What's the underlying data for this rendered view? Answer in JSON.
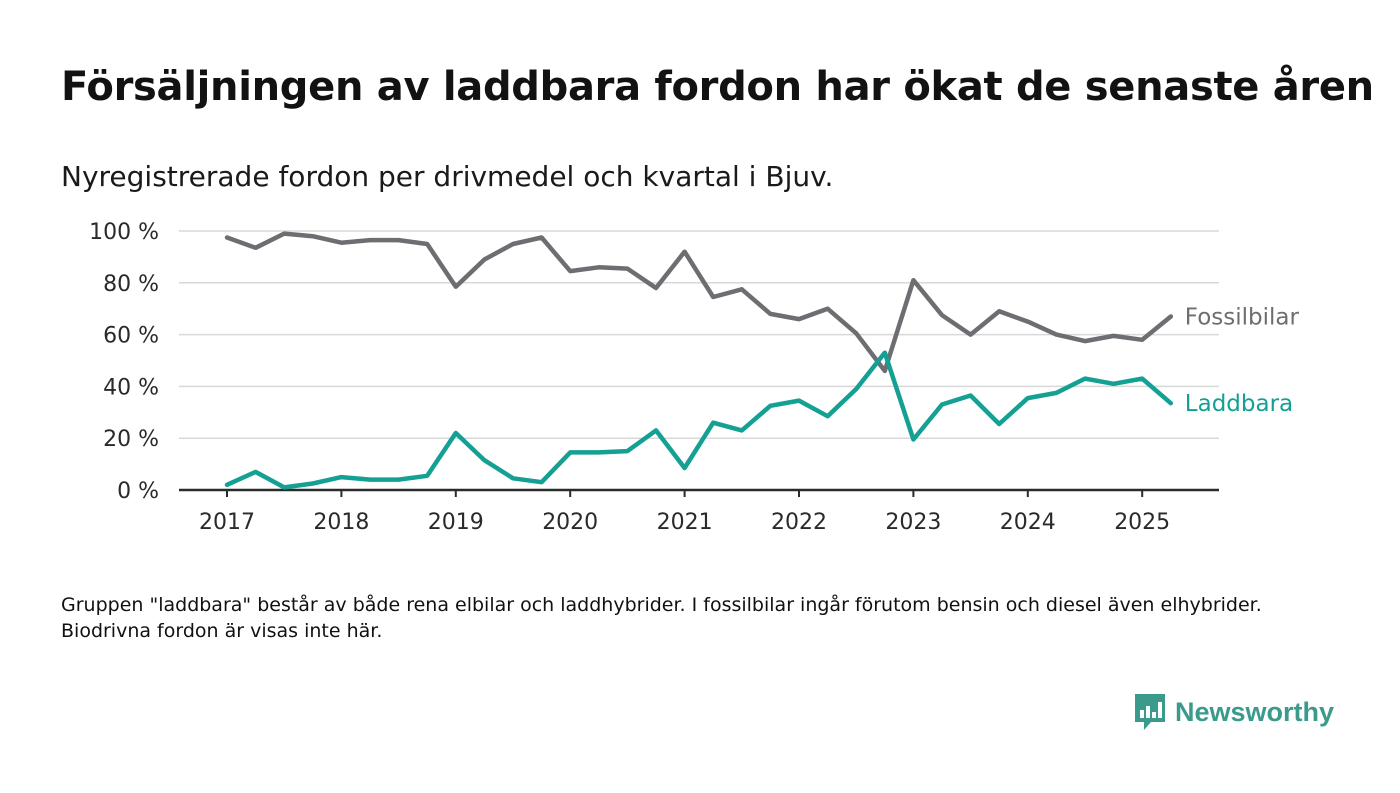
{
  "title": "Försäljningen av laddbara fordon har ökat de senaste åren",
  "subtitle": "Nyregistrerade fordon per drivmedel och kvartal i Bjuv.",
  "note": "Gruppen \"laddbara\" består av både rena elbilar och laddhybrider. I fossilbilar ingår förutom bensin och diesel även elhybrider. Biodrivna fordon är visas inte här.",
  "brand": {
    "name": "Newsworthy",
    "color": "#3a9a8c",
    "icon": "bar-chart-speech-bubble-icon"
  },
  "chart_data": {
    "type": "line",
    "x_tick_labels": [
      "2017",
      "2018",
      "2019",
      "2020",
      "2021",
      "2022",
      "2023",
      "2024",
      "2025"
    ],
    "y_tick_labels": [
      "0 %",
      "20 %",
      "40 %",
      "60 %",
      "80 %",
      "100 %"
    ],
    "ylim": [
      0,
      100
    ],
    "grid": true,
    "legend": "inline labels at line ends (right)",
    "x": [
      "2017 Q1",
      "2017 Q2",
      "2017 Q3",
      "2017 Q4",
      "2018 Q1",
      "2018 Q2",
      "2018 Q3",
      "2018 Q4",
      "2019 Q1",
      "2019 Q2",
      "2019 Q3",
      "2019 Q4",
      "2020 Q1",
      "2020 Q2",
      "2020 Q3",
      "2020 Q4",
      "2021 Q1",
      "2021 Q2",
      "2021 Q3",
      "2021 Q4",
      "2022 Q1",
      "2022 Q2",
      "2022 Q3",
      "2022 Q4",
      "2023 Q1",
      "2023 Q2",
      "2023 Q3",
      "2023 Q4",
      "2024 Q1",
      "2024 Q2",
      "2024 Q3",
      "2024 Q4",
      "2025 Q1",
      "2025 Q2"
    ],
    "series": [
      {
        "name": "Fossilbilar",
        "color": "#6e6d72",
        "values": [
          97.5,
          93.5,
          99,
          98,
          95.5,
          96.5,
          96.5,
          95,
          78.5,
          89,
          95,
          97.5,
          84.5,
          86,
          85.5,
          78,
          92,
          74.5,
          77.5,
          68,
          66,
          70,
          60.5,
          46,
          81,
          67.5,
          60,
          69,
          65,
          60,
          57.5,
          59.5,
          58,
          67
        ]
      },
      {
        "name": "Laddbara",
        "color": "#14a093",
        "values": [
          2,
          7,
          1,
          2.5,
          5,
          4,
          4,
          5.5,
          22,
          11.5,
          4.5,
          3,
          14.5,
          14.5,
          15,
          23,
          8.5,
          26,
          23,
          32.5,
          34.5,
          28.5,
          39,
          53,
          19.5,
          33,
          36.5,
          25.5,
          35.5,
          37.5,
          43,
          41,
          43,
          33.5
        ]
      }
    ]
  }
}
